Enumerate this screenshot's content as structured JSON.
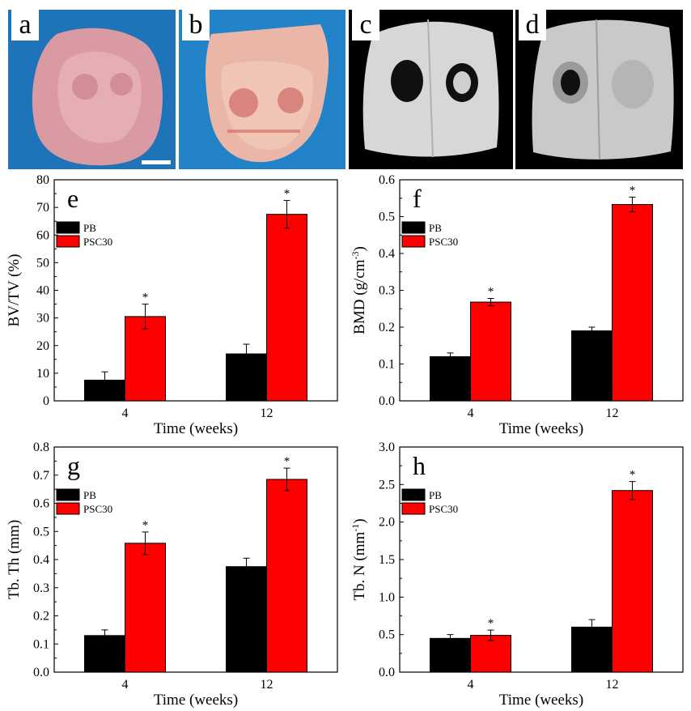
{
  "photos": [
    {
      "label": "a"
    },
    {
      "label": "b"
    },
    {
      "label": "c"
    },
    {
      "label": "d"
    }
  ],
  "chart_data": [
    {
      "panel": "e",
      "type": "bar",
      "title": "",
      "xlabel": "Time (weeks)",
      "ylabel_parts": [
        "BV/TV (%)"
      ],
      "categories": [
        "4",
        "12"
      ],
      "ylim": [
        0,
        80
      ],
      "yticks": [
        0,
        10,
        20,
        30,
        40,
        50,
        60,
        70,
        80
      ],
      "legend_position": "upper-left",
      "series": [
        {
          "name": "PB",
          "color": "#000000",
          "values": [
            7.5,
            17
          ],
          "errors": [
            3,
            3.5
          ],
          "sig": [
            "",
            ""
          ]
        },
        {
          "name": "PSC30",
          "color": "#ff0000",
          "values": [
            30.5,
            67.5
          ],
          "errors": [
            4.5,
            5
          ],
          "sig": [
            "*",
            "*"
          ]
        }
      ]
    },
    {
      "panel": "f",
      "type": "bar",
      "title": "",
      "xlabel": "Time (weeks)",
      "ylabel_parts": [
        "BMD (g/cm",
        "-3",
        ")"
      ],
      "categories": [
        "4",
        "12"
      ],
      "ylim": [
        0,
        0.6
      ],
      "yticks": [
        "0.0",
        "0.1",
        "0.2",
        "0.3",
        "0.4",
        "0.5",
        "0.6"
      ],
      "legend_position": "upper-left",
      "series": [
        {
          "name": "PB",
          "color": "#000000",
          "values": [
            0.12,
            0.19
          ],
          "errors": [
            0.01,
            0.01
          ],
          "sig": [
            "",
            ""
          ]
        },
        {
          "name": "PSC30",
          "color": "#ff0000",
          "values": [
            0.268,
            0.533
          ],
          "errors": [
            0.01,
            0.02
          ],
          "sig": [
            "*",
            "*"
          ]
        }
      ]
    },
    {
      "panel": "g",
      "type": "bar",
      "title": "",
      "xlabel": "Time (weeks)",
      "ylabel_parts": [
        "Tb. Th (mm)"
      ],
      "categories": [
        "4",
        "12"
      ],
      "ylim": [
        0,
        0.8
      ],
      "yticks": [
        "0.0",
        "0.1",
        "0.2",
        "0.3",
        "0.4",
        "0.5",
        "0.6",
        "0.7",
        "0.8"
      ],
      "legend_position": "upper-left",
      "series": [
        {
          "name": "PB",
          "color": "#000000",
          "values": [
            0.13,
            0.375
          ],
          "errors": [
            0.02,
            0.03
          ],
          "sig": [
            "",
            ""
          ]
        },
        {
          "name": "PSC30",
          "color": "#ff0000",
          "values": [
            0.458,
            0.685
          ],
          "errors": [
            0.04,
            0.04
          ],
          "sig": [
            "*",
            "*"
          ]
        }
      ]
    },
    {
      "panel": "h",
      "type": "bar",
      "title": "",
      "xlabel": "Time (weeks)",
      "ylabel_parts": [
        "Tb. N (mm",
        "-1",
        ")"
      ],
      "categories": [
        "4",
        "12"
      ],
      "ylim": [
        0,
        3.0
      ],
      "yticks": [
        "0.0",
        "0.5",
        "1.0",
        "1.5",
        "2.0",
        "2.5",
        "3.0"
      ],
      "legend_position": "upper-left",
      "series": [
        {
          "name": "PB",
          "color": "#000000",
          "values": [
            0.45,
            0.6
          ],
          "errors": [
            0.05,
            0.1
          ],
          "sig": [
            "",
            ""
          ]
        },
        {
          "name": "PSC30",
          "color": "#ff0000",
          "values": [
            0.49,
            2.42
          ],
          "errors": [
            0.07,
            0.12
          ],
          "sig": [
            "*",
            "*"
          ]
        }
      ]
    }
  ]
}
